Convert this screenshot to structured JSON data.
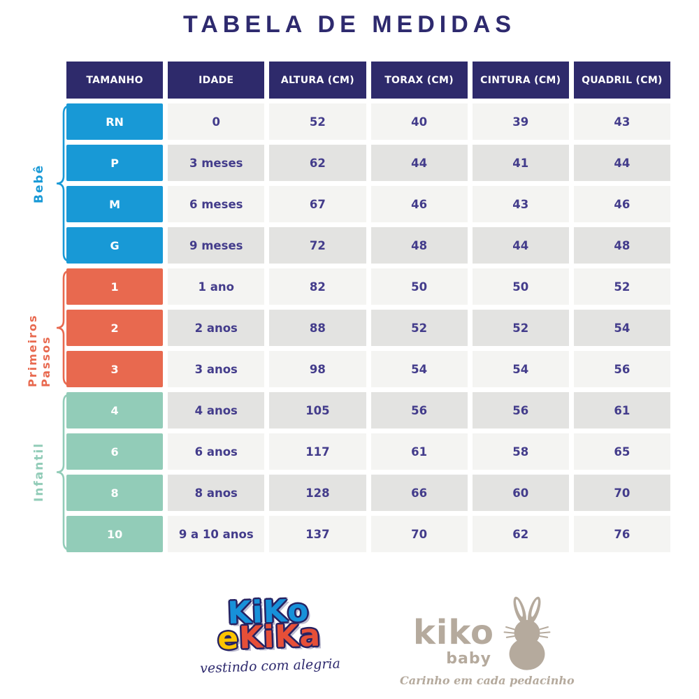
{
  "title": "TABELA DE MEDIDAS",
  "table": {
    "headers": [
      "TAMANHO",
      "IDADE",
      "ALTURA (CM)",
      "TORAX (CM)",
      "CINTURA (CM)",
      "QUADRIL (CM)"
    ],
    "groups": [
      {
        "name": "Bebê",
        "color": "#1899d6",
        "rows": [
          {
            "size": "RN",
            "values": [
              "0",
              "52",
              "40",
              "39",
              "43"
            ]
          },
          {
            "size": "P",
            "values": [
              "3 meses",
              "62",
              "44",
              "41",
              "44"
            ]
          },
          {
            "size": "M",
            "values": [
              "6 meses",
              "67",
              "46",
              "43",
              "46"
            ]
          },
          {
            "size": "G",
            "values": [
              "9 meses",
              "72",
              "48",
              "44",
              "48"
            ]
          }
        ]
      },
      {
        "name": "Primeiros Passos",
        "color": "#e8694f",
        "rows": [
          {
            "size": "1",
            "values": [
              "1 ano",
              "82",
              "50",
              "50",
              "52"
            ]
          },
          {
            "size": "2",
            "values": [
              "2 anos",
              "88",
              "52",
              "52",
              "54"
            ]
          },
          {
            "size": "3",
            "values": [
              "3 anos",
              "98",
              "54",
              "54",
              "56"
            ]
          }
        ]
      },
      {
        "name": "Infantil",
        "color": "#92ccb8",
        "rows": [
          {
            "size": "4",
            "values": [
              "4 anos",
              "105",
              "56",
              "56",
              "61"
            ]
          },
          {
            "size": "6",
            "values": [
              "6 anos",
              "117",
              "61",
              "58",
              "65"
            ]
          },
          {
            "size": "8",
            "values": [
              "8 anos",
              "128",
              "66",
              "60",
              "70"
            ]
          },
          {
            "size": "10",
            "values": [
              "9 a 10 anos",
              "137",
              "70",
              "62",
              "76"
            ]
          }
        ]
      }
    ]
  },
  "chart_data": {
    "type": "table",
    "title": "TABELA DE MEDIDAS",
    "columns": [
      "TAMANHO",
      "IDADE",
      "ALTURA (CM)",
      "TORAX (CM)",
      "CINTURA (CM)",
      "QUADRIL (CM)"
    ],
    "row_groups": [
      {
        "group": "Bebê",
        "rows": [
          [
            "RN",
            "0",
            52,
            40,
            39,
            43
          ],
          [
            "P",
            "3 meses",
            62,
            44,
            41,
            44
          ],
          [
            "M",
            "6 meses",
            67,
            46,
            43,
            46
          ],
          [
            "G",
            "9 meses",
            72,
            48,
            44,
            48
          ]
        ]
      },
      {
        "group": "Primeiros Passos",
        "rows": [
          [
            "1",
            "1 ano",
            82,
            50,
            50,
            52
          ],
          [
            "2",
            "2 anos",
            88,
            52,
            52,
            54
          ],
          [
            "3",
            "3 anos",
            98,
            54,
            54,
            56
          ]
        ]
      },
      {
        "group": "Infantil",
        "rows": [
          [
            "4",
            "4 anos",
            105,
            56,
            56,
            61
          ],
          [
            "6",
            "6 anos",
            117,
            61,
            58,
            65
          ],
          [
            "8",
            "8 anos",
            128,
            66,
            60,
            70
          ],
          [
            "10",
            "9 a 10 anos",
            137,
            70,
            62,
            76
          ]
        ]
      }
    ]
  },
  "footer": {
    "brand1": {
      "line1": "KiKo",
      "line2_e": "e",
      "line2_kika": "KiKa",
      "tagline": "vestindo com alegria"
    },
    "brand2": {
      "name": "kiko",
      "sub": "baby",
      "tagline": "Carinho em cada pedacinho"
    }
  },
  "colors": {
    "title_navy": "#2e2a6e",
    "header_bg": "#2e2a6b",
    "cell_text": "#433c8b",
    "row_light": "#f4f4f2",
    "row_dark": "#e3e3e1",
    "bebe_blue": "#1899d6",
    "primeiros_passos_coral": "#e8694f",
    "infantil_mint": "#92ccb8",
    "logo_taupe": "#b5aa9d",
    "kiko_blue": "#1791d9",
    "kiko_yellow": "#fdc400",
    "kika_red": "#e64f38"
  }
}
